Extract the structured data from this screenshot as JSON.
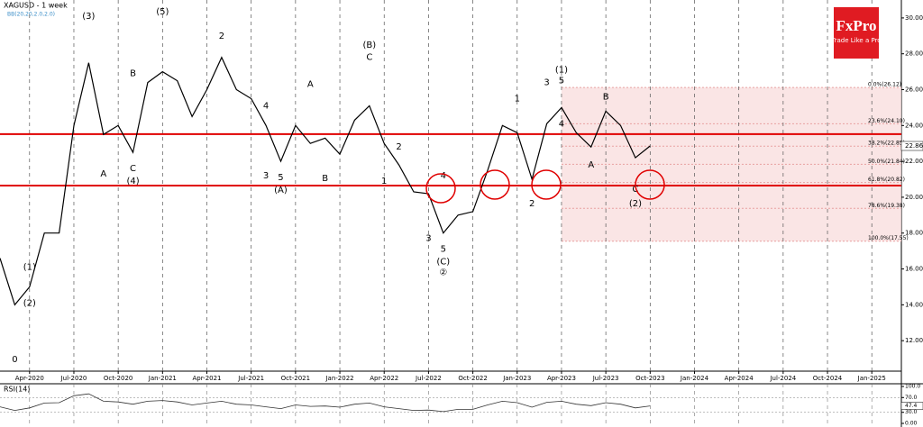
{
  "chart_data": [
    {
      "type": "line",
      "title": "XAGUSD - 1 week",
      "subtitle": "BB(20,20,2.0,2.0)",
      "color": "#000000",
      "x": [
        "2020-02",
        "2020-03",
        "2020-04",
        "2020-05",
        "2020-06",
        "2020-07",
        "2020-08",
        "2020-09",
        "2020-10",
        "2020-11",
        "2020-12",
        "2021-01",
        "2021-02",
        "2021-03",
        "2021-04",
        "2021-05",
        "2021-06",
        "2021-07",
        "2021-08",
        "2021-09",
        "2021-10",
        "2021-11",
        "2021-12",
        "2022-01",
        "2022-02",
        "2022-03",
        "2022-04",
        "2022-05",
        "2022-06",
        "2022-07",
        "2022-08",
        "2022-09",
        "2022-10",
        "2022-11",
        "2022-12",
        "2023-01",
        "2023-02",
        "2023-03",
        "2023-04",
        "2023-05",
        "2023-06",
        "2023-07",
        "2023-08",
        "2023-09",
        "2023-10"
      ],
      "values": [
        16.6,
        14.0,
        15.0,
        18.0,
        18.0,
        24.0,
        27.5,
        23.5,
        24.0,
        22.5,
        26.4,
        27.0,
        26.5,
        24.5,
        26.0,
        27.8,
        26.0,
        25.5,
        24.0,
        22.0,
        24.0,
        23.0,
        23.3,
        22.4,
        24.3,
        25.1,
        23.0,
        21.8,
        20.3,
        20.2,
        18.0,
        19.0,
        19.2,
        21.5,
        24.0,
        23.6,
        21.0,
        24.1,
        25.0,
        23.6,
        22.8,
        24.8,
        24.0,
        22.2,
        22.86
      ],
      "xlim": [
        "2020-02",
        "2025-03"
      ],
      "xticks": [
        {
          "value": "2020-04",
          "label": "Apr-2020"
        },
        {
          "value": "2020-07",
          "label": "Jul-2020"
        },
        {
          "value": "2020-10",
          "label": "Oct-2020"
        },
        {
          "value": "2021-01",
          "label": "Jan-2021"
        },
        {
          "value": "2021-04",
          "label": "Apr-2021"
        },
        {
          "value": "2021-07",
          "label": "Jul-2021"
        },
        {
          "value": "2021-10",
          "label": "Oct-2021"
        },
        {
          "value": "2022-01",
          "label": "Jan-2022"
        },
        {
          "value": "2022-04",
          "label": "Apr-2022"
        },
        {
          "value": "2022-07",
          "label": "Jul-2022"
        },
        {
          "value": "2022-10",
          "label": "Oct-2022"
        },
        {
          "value": "2023-01",
          "label": "Jan-2023"
        },
        {
          "value": "2023-04",
          "label": "Apr-2023"
        },
        {
          "value": "2023-07",
          "label": "Jul-2023"
        },
        {
          "value": "2023-10",
          "label": "Oct-2023"
        },
        {
          "value": "2024-01",
          "label": "Jan-2024"
        },
        {
          "value": "2024-04",
          "label": "Apr-2024"
        },
        {
          "value": "2024-07",
          "label": "Jul-2024"
        },
        {
          "value": "2024-10",
          "label": "Oct-2024"
        },
        {
          "value": "2025-01",
          "label": "Jan-2025"
        }
      ],
      "ylim": [
        10.3,
        31.0
      ],
      "yticks": [
        {
          "value": 12,
          "label": "12.00"
        },
        {
          "value": 14,
          "label": "14.00"
        },
        {
          "value": 16,
          "label": "16.00"
        },
        {
          "value": 18,
          "label": "18.00"
        },
        {
          "value": 20,
          "label": "20.00"
        },
        {
          "value": 22,
          "label": "22.00"
        },
        {
          "value": 24,
          "label": "24.00"
        },
        {
          "value": 26,
          "label": "26.00"
        },
        {
          "value": 28,
          "label": "28.00"
        },
        {
          "value": 30,
          "label": "30.00"
        }
      ],
      "grid": true,
      "last_price": {
        "value": 22.86,
        "label": "22.86"
      },
      "hlines": [
        {
          "value": 23.52,
          "color": "#e00000"
        },
        {
          "value": 20.65,
          "color": "#e00000"
        }
      ],
      "fib": {
        "x_start": "2023-04",
        "color": "#e8a0a0",
        "levels": [
          {
            "value": 26.12,
            "label": "0.0%(26.12)"
          },
          {
            "value": 24.1,
            "label": "23.6%(24.10)"
          },
          {
            "value": 22.85,
            "label": "38.2%(22.85)"
          },
          {
            "value": 21.84,
            "label": "50.0%(21.84)"
          },
          {
            "value": 20.82,
            "label": "61.8%(20.82)"
          },
          {
            "value": 19.38,
            "label": "78.6%(19.38)"
          },
          {
            "value": 17.55,
            "label": "100.0%(17.55)"
          }
        ]
      },
      "annotations": [
        {
          "text": "(3)",
          "x": "2020-08",
          "y": 30.1
        },
        {
          "text": "(5)",
          "x": "2021-01",
          "y": 30.35
        },
        {
          "text": "(B)",
          "x": "2022-03",
          "y": 28.5
        },
        {
          "text": "C",
          "x": "2022-03",
          "y": 27.8
        },
        {
          "text": "(1)",
          "x": "2023-04",
          "y": 27.1
        },
        {
          "text": "5",
          "x": "2023-04",
          "y": 26.5
        },
        {
          "text": "3",
          "x": "2023-03",
          "y": 26.4
        },
        {
          "text": "4",
          "x": "2023-04",
          "y": 24.1
        },
        {
          "text": "1",
          "x": "2023-01",
          "y": 25.5
        },
        {
          "text": "2",
          "x": "2023-02",
          "y": 19.65
        },
        {
          "text": "B",
          "x": "2023-07",
          "y": 25.6
        },
        {
          "text": "A",
          "x": "2023-06",
          "y": 21.8
        },
        {
          "text": "C",
          "x": "2023-09",
          "y": 20.45
        },
        {
          "text": "(2)",
          "x": "2023-09",
          "y": 19.65
        },
        {
          "text": "B",
          "x": "2020-11",
          "y": 26.9
        },
        {
          "text": "A",
          "x": "2020-09",
          "y": 21.3
        },
        {
          "text": "C",
          "x": "2020-11",
          "y": 21.6
        },
        {
          "text": "(4)",
          "x": "2020-11",
          "y": 20.9
        },
        {
          "text": "2",
          "x": "2021-05",
          "y": 29.0
        },
        {
          "text": "(1)",
          "x": "2020-04",
          "y": 16.1
        },
        {
          "text": "(2)",
          "x": "2020-04",
          "y": 14.1
        },
        {
          "text": "0",
          "x": "2020-03",
          "y": 10.95
        },
        {
          "text": "4",
          "x": "2021-08",
          "y": 25.1
        },
        {
          "text": "3",
          "x": "2021-08",
          "y": 21.2
        },
        {
          "text": "5",
          "x": "2021-09",
          "y": 21.1
        },
        {
          "text": "(A)",
          "x": "2021-09",
          "y": 20.4
        },
        {
          "text": "A",
          "x": "2021-11",
          "y": 26.3
        },
        {
          "text": "B",
          "x": "2021-12",
          "y": 21.05
        },
        {
          "text": "2",
          "x": "2022-05",
          "y": 22.8
        },
        {
          "text": "1",
          "x": "2022-04",
          "y": 20.9
        },
        {
          "text": "3",
          "x": "2022-07",
          "y": 17.7
        },
        {
          "text": "4",
          "x": "2022-08",
          "y": 21.2
        },
        {
          "text": "5",
          "x": "2022-08",
          "y": 17.1
        },
        {
          "text": "(C)",
          "x": "2022-08",
          "y": 16.4
        },
        {
          "text": "②",
          "x": "2022-08",
          "y": 15.8
        }
      ]
    },
    {
      "type": "line",
      "title": "RSI(14)",
      "color": "#333333",
      "values": [
        45,
        35,
        42,
        55,
        56,
        75,
        80,
        60,
        58,
        52,
        60,
        62,
        58,
        50,
        55,
        60,
        52,
        50,
        45,
        40,
        50,
        46,
        47,
        44,
        52,
        55,
        45,
        40,
        35,
        36,
        32,
        38,
        38,
        50,
        60,
        56,
        44,
        57,
        60,
        52,
        48,
        56,
        52,
        42,
        47.4
      ],
      "ylim": [
        0,
        100
      ],
      "yticks": [
        {
          "value": 100,
          "label": "100.0"
        },
        {
          "value": 70,
          "label": "70.0"
        },
        {
          "value": 30,
          "label": "30.0"
        },
        {
          "value": 0,
          "label": "0.00"
        }
      ],
      "last_value": {
        "value": 47.4,
        "label": "47.4"
      }
    }
  ],
  "logo": {
    "brand": "FxPro",
    "tagline": "Trade Like a Pro"
  }
}
